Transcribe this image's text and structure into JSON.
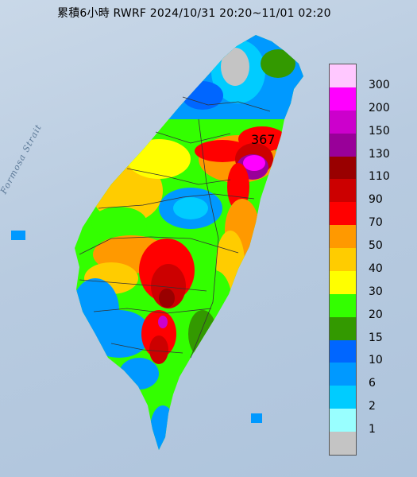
{
  "header": {
    "title": "累積6小時 RWRF 2024/10/31 20:20~11/01 02:20"
  },
  "map": {
    "strait_label": "Formosa Strait",
    "max_value_label": "367"
  },
  "legend": {
    "levels": [
      {
        "label": "300",
        "color": "#ffc8ff"
      },
      {
        "label": "200",
        "color": "#ff00ff"
      },
      {
        "label": "150",
        "color": "#cc00cc"
      },
      {
        "label": "130",
        "color": "#990099"
      },
      {
        "label": "110",
        "color": "#990000"
      },
      {
        "label": "90",
        "color": "#cc0000"
      },
      {
        "label": "70",
        "color": "#ff0000"
      },
      {
        "label": "50",
        "color": "#ff9900"
      },
      {
        "label": "40",
        "color": "#ffcc00"
      },
      {
        "label": "30",
        "color": "#ffff00"
      },
      {
        "label": "20",
        "color": "#33ff00"
      },
      {
        "label": "15",
        "color": "#339900"
      },
      {
        "label": "10",
        "color": "#0066ff"
      },
      {
        "label": "6",
        "color": "#0099ff"
      },
      {
        "label": "2",
        "color": "#00ccff"
      },
      {
        "label": "1",
        "color": "#99ffff"
      },
      {
        "label": "",
        "color": "#c4c4c4"
      }
    ]
  }
}
